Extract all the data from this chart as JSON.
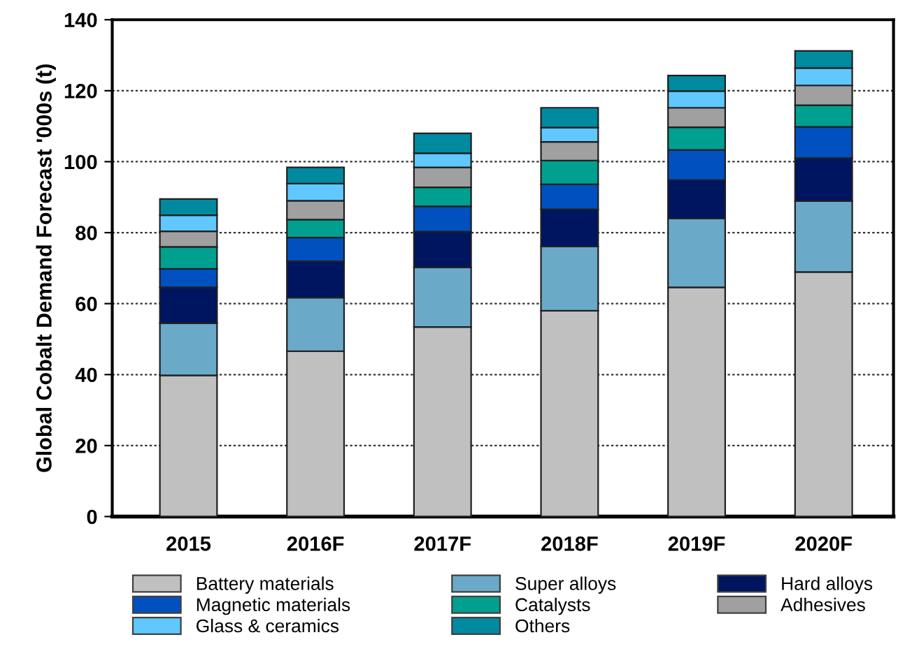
{
  "chart_data": {
    "type": "bar",
    "stacked": true,
    "ylabel": "Global Cobalt Demand Forecast '000s (t)",
    "categories": [
      "2015",
      "2016F",
      "2017F",
      "2018F",
      "2019F",
      "2020F"
    ],
    "ylim": [
      0,
      140
    ],
    "yticks": [
      0,
      20,
      40,
      60,
      80,
      100,
      120,
      140
    ],
    "grid": "y",
    "legend": "bottom",
    "series": [
      {
        "name": "Battery materials",
        "color": "#c0c0c0",
        "values": [
          39.8,
          46.6,
          53.4,
          58,
          64.6,
          68.9
        ]
      },
      {
        "name": "Super alloys",
        "color": "#6aaac8",
        "values": [
          14.7,
          15.1,
          16.8,
          18.1,
          19.4,
          20
        ]
      },
      {
        "name": "Hard alloys",
        "color": "#001560",
        "values": [
          10.1,
          10.2,
          10.1,
          10.5,
          10.8,
          12.1
        ]
      },
      {
        "name": "Magnetic materials",
        "color": "#0050c0",
        "values": [
          5.2,
          6.7,
          7.1,
          7,
          8.5,
          8.8
        ]
      },
      {
        "name": "Catalysts",
        "color": "#00a090",
        "values": [
          6.2,
          5.1,
          5.4,
          6.7,
          6.4,
          6.1
        ]
      },
      {
        "name": "Adhesives",
        "color": "#a0a0a0",
        "values": [
          4.4,
          5.3,
          5.6,
          5.3,
          5.5,
          5.6
        ]
      },
      {
        "name": "Glass & ceramics",
        "color": "#60c8ff",
        "values": [
          4.5,
          4.8,
          4,
          4,
          4.7,
          4.9
        ]
      },
      {
        "name": "Others",
        "color": "#008aa0",
        "values": [
          4.6,
          4.6,
          5.6,
          5.6,
          4.4,
          4.8
        ]
      }
    ]
  }
}
